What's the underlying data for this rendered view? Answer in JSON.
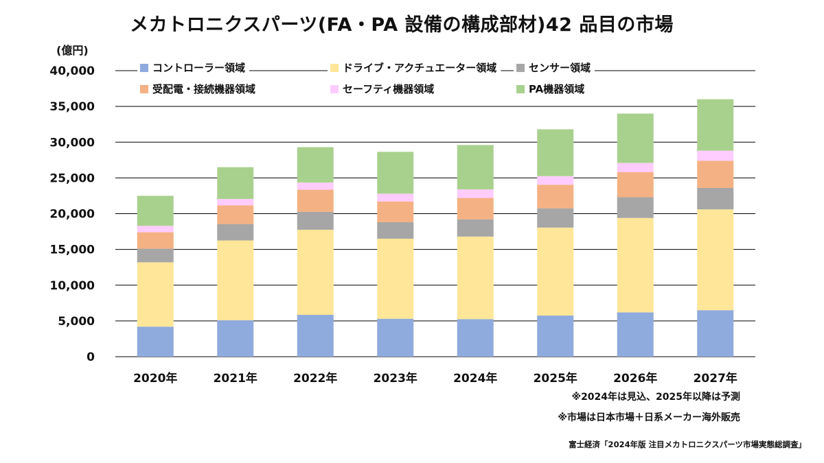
{
  "title": "メカトロニクスパーツ(FA・PA  設備の構成部材)42  品目の市場",
  "unit": "(億円)",
  "notes": [
    "※2024年は見込、2025年以降は予測",
    "※市場は日本市場＋日系メーカー海外販売"
  ],
  "source": "富士経済「2024年版 注目メカトロニクスパーツ市場実態総調査」",
  "chart_data": {
    "type": "bar",
    "stacked": true,
    "title": "メカトロニクスパーツ(FA・PA  設備の構成部材)42  品目の市場",
    "ylabel": "(億円)",
    "xlabel": "",
    "ylim": [
      0,
      40000
    ],
    "yticks": [
      0,
      5000,
      10000,
      15000,
      20000,
      25000,
      30000,
      35000,
      40000
    ],
    "ytick_labels": [
      "0",
      "5,000",
      "10,000",
      "15,000",
      "20,000",
      "25,000",
      "30,000",
      "35,000",
      "40,000"
    ],
    "grid": true,
    "legend_position": "top",
    "categories": [
      "2020年",
      "2021年",
      "2022年",
      "2023年",
      "2024年",
      "2025年",
      "2026年",
      "2027年"
    ],
    "series": [
      {
        "name": "コントローラー領域",
        "color": "#8faadc",
        "values": [
          4200,
          5100,
          5850,
          5300,
          5250,
          5750,
          6200,
          6500
        ]
      },
      {
        "name": "ドライブ・アクチュエーター領域",
        "color": "#ffe699",
        "values": [
          9000,
          11150,
          11900,
          11200,
          11550,
          12300,
          13200,
          14100
        ]
      },
      {
        "name": "センサー領域",
        "color": "#a6a6a6",
        "values": [
          1900,
          2300,
          2500,
          2300,
          2400,
          2700,
          2900,
          3000
        ]
      },
      {
        "name": "受配電・接続機器領域",
        "color": "#f4b183",
        "values": [
          2300,
          2600,
          3100,
          2900,
          3000,
          3300,
          3500,
          3800
        ]
      },
      {
        "name": "セーフティ機器領域",
        "color": "#ffccff",
        "values": [
          900,
          900,
          1000,
          1100,
          1200,
          1200,
          1300,
          1400
        ]
      },
      {
        "name": "PA機器領域",
        "color": "#a9d18e",
        "values": [
          4200,
          4450,
          4950,
          5850,
          6200,
          6550,
          6900,
          7200
        ]
      }
    ]
  }
}
